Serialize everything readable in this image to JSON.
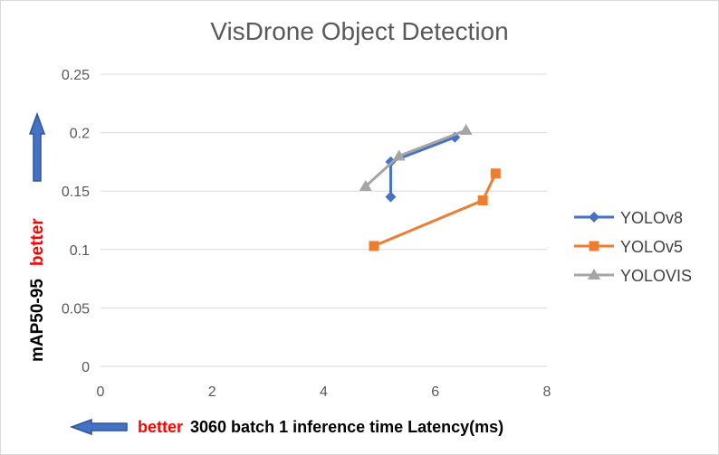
{
  "chart_data": {
    "type": "line",
    "title": "VisDrone Object Detection",
    "xlim": [
      0,
      8
    ],
    "ylim": [
      0,
      0.25
    ],
    "x_ticks": [
      0,
      2,
      4,
      6,
      8
    ],
    "y_ticks": [
      0,
      0.05,
      0.1,
      0.15,
      0.2,
      0.25
    ],
    "x_tick_labels": [
      "0",
      "2",
      "4",
      "6",
      "8"
    ],
    "y_tick_labels": [
      "0",
      "0.05",
      "0.1",
      "0.15",
      "0.2",
      "0.25"
    ],
    "grid": "horizontal",
    "legend": "right",
    "ylabel": {
      "main": "mAP50-95",
      "emphasis": "better"
    },
    "xlabel": {
      "emphasis": "better",
      "main": "3060 batch 1 inference time Latency(ms)"
    },
    "series": [
      {
        "name": "YOLOv8",
        "color": "#4472c4",
        "marker": "diamond",
        "points": [
          [
            5.2,
            0.145
          ],
          [
            5.2,
            0.175
          ],
          [
            6.35,
            0.196
          ]
        ]
      },
      {
        "name": "YOLOv5",
        "color": "#ed7d31",
        "marker": "square",
        "points": [
          [
            4.9,
            0.103
          ],
          [
            6.85,
            0.142
          ],
          [
            7.08,
            0.165
          ]
        ]
      },
      {
        "name": "YOLOVIS",
        "color": "#a5a5a5",
        "marker": "triangle",
        "points": [
          [
            4.75,
            0.154
          ],
          [
            5.35,
            0.18
          ],
          [
            6.55,
            0.202
          ]
        ]
      }
    ],
    "arrow_color": "#4472c4"
  }
}
